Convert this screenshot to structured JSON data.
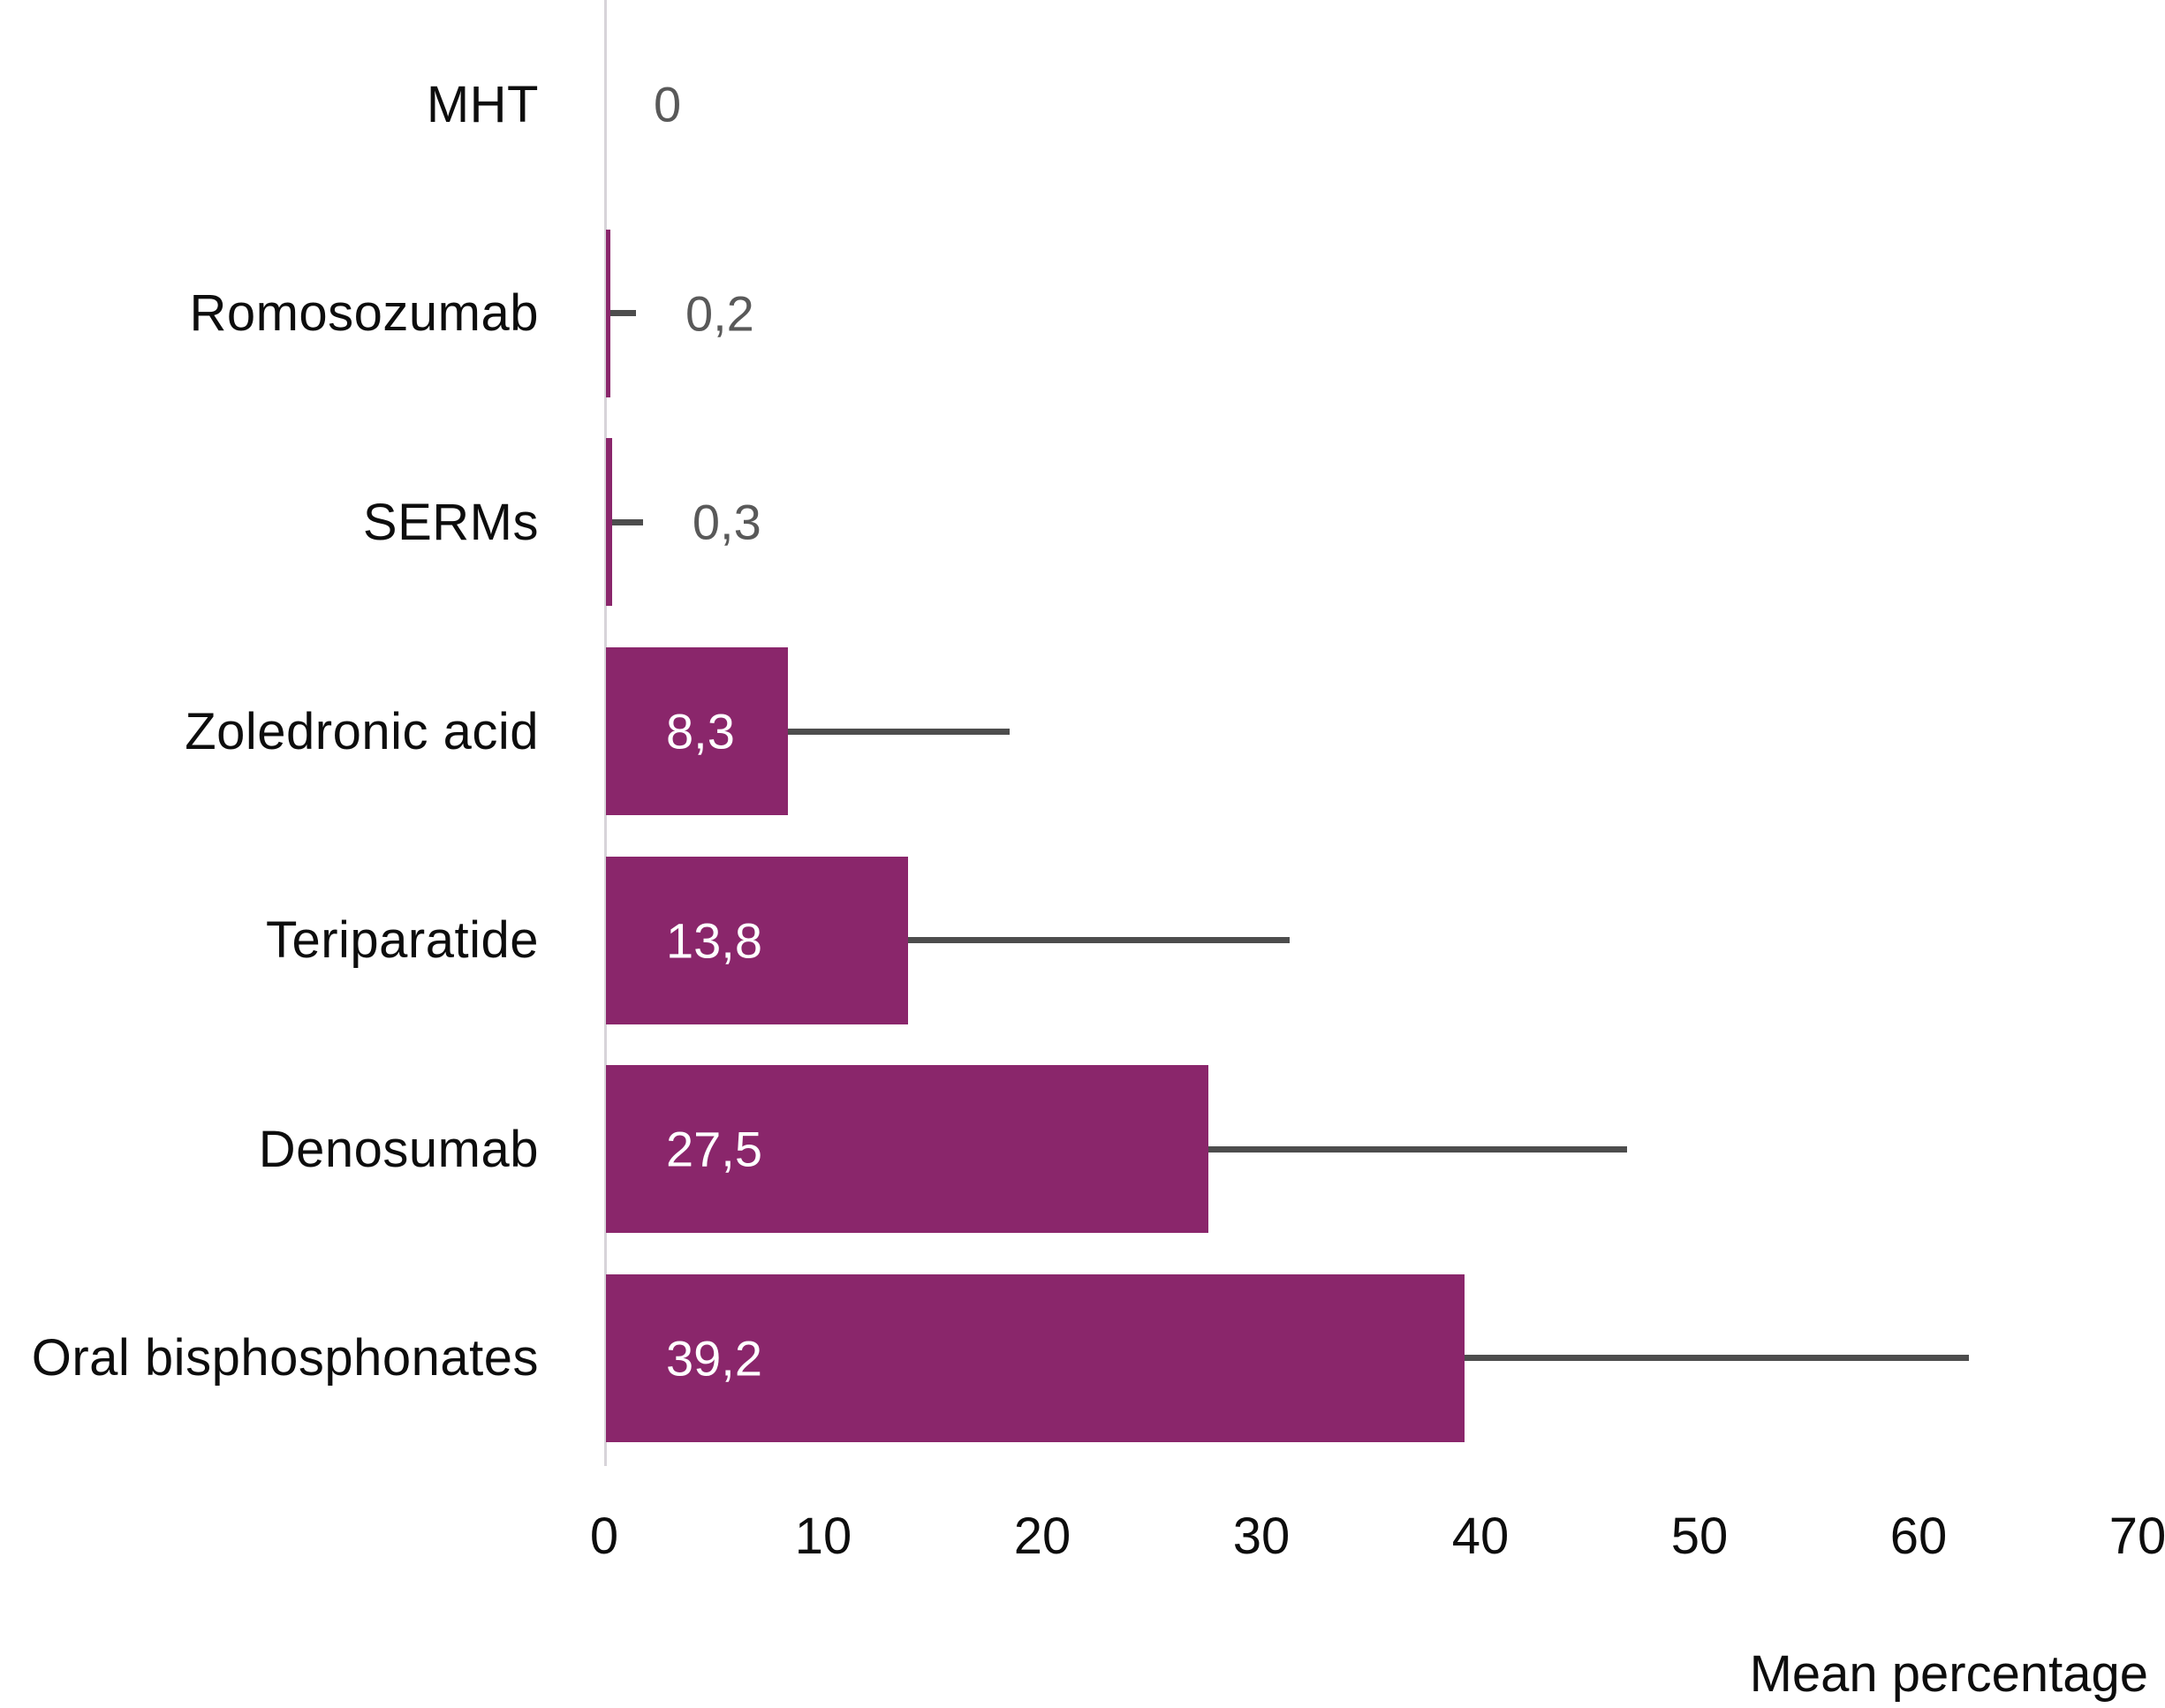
{
  "chart_data": {
    "type": "bar",
    "orientation": "horizontal",
    "title": "",
    "xlabel": "Mean percentage",
    "ylabel": "",
    "xlim": [
      0,
      70
    ],
    "x_ticks": [
      0,
      10,
      20,
      30,
      40,
      50,
      60,
      70
    ],
    "grid": false,
    "legend": null,
    "categories": [
      "MHT",
      "Romosozumab",
      "SERMs",
      "Zoledronic acid",
      "Teriparatide",
      "Denosumab",
      "Oral bisphosphonates"
    ],
    "values": [
      0,
      0.2,
      0.3,
      8.3,
      13.8,
      27.5,
      39.2
    ],
    "value_labels": [
      "0",
      "0,2",
      "0,3",
      "8,3",
      "13,8",
      "27,5",
      "39,2"
    ],
    "error_high": [
      null,
      1.45,
      1.77,
      18.5,
      31.3,
      46.7,
      62.3
    ],
    "colors": {
      "bar": "#8A266B",
      "error_line": "#4d4d4d",
      "axis_line": "#d7d4d9",
      "inside_value_label": "#ffffff",
      "outside_value_label": "#595959",
      "text": "#0d0d0d"
    }
  }
}
